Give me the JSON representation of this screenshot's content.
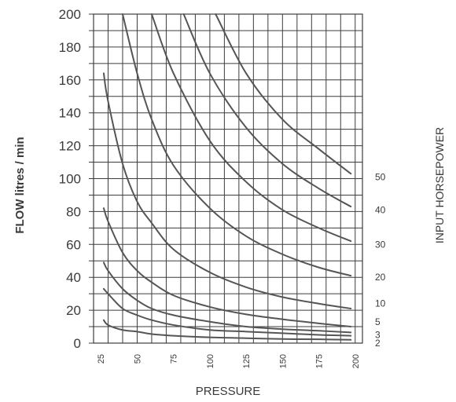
{
  "chart_data": {
    "type": "line",
    "xlabel": "PRESSURE",
    "ylabel": "FLOW litres / min",
    "right_label": "INPUT HORSEPOWER",
    "xlim": [
      20,
      205
    ],
    "ylim": [
      0,
      200
    ],
    "x_ticks": [
      25,
      50,
      75,
      100,
      125,
      150,
      175,
      200
    ],
    "y_ticks": [
      0,
      20,
      40,
      60,
      80,
      100,
      120,
      140,
      160,
      180,
      200
    ],
    "grid": true,
    "colors": {
      "line": "#555555",
      "grid": "#3c3c3c",
      "text": "#3a3a3a"
    },
    "series": [
      {
        "name": "2",
        "x": [
          27,
          30,
          40,
          50,
          60,
          75,
          100,
          125,
          150,
          175,
          197
        ],
        "y": [
          14,
          11,
          8,
          7,
          5.5,
          4.5,
          3.5,
          3,
          2.5,
          2.3,
          2
        ]
      },
      {
        "name": "3",
        "x": [
          27,
          30,
          40,
          50,
          60,
          75,
          100,
          125,
          150,
          175,
          197
        ],
        "y": [
          33,
          30,
          21,
          17,
          14,
          11,
          8,
          7,
          6,
          5,
          4.5
        ]
      },
      {
        "name": "5",
        "x": [
          27,
          30,
          40,
          50,
          60,
          75,
          100,
          125,
          150,
          175,
          197
        ],
        "y": [
          49,
          44,
          33,
          26,
          21,
          17,
          13,
          10,
          8.5,
          7.5,
          6.5
        ]
      },
      {
        "name": "10",
        "x": [
          27,
          30,
          40,
          50,
          60,
          75,
          100,
          125,
          150,
          175,
          197
        ],
        "y": [
          82,
          74,
          55,
          44,
          37,
          29,
          22,
          17.5,
          14.5,
          12,
          10
        ]
      },
      {
        "name": "20",
        "x": [
          27,
          30,
          40,
          50,
          60,
          75,
          100,
          125,
          150,
          175,
          197
        ],
        "y": [
          164,
          147,
          109,
          86,
          73,
          57,
          43,
          34,
          28,
          24,
          21
        ]
      },
      {
        "name": "30",
        "x": [
          40,
          50,
          60,
          75,
          100,
          125,
          150,
          175,
          197
        ],
        "y": [
          200,
          164,
          136,
          108,
          82,
          65,
          54,
          46,
          41
        ]
      },
      {
        "name": "40",
        "x": [
          60,
          75,
          100,
          125,
          150,
          175,
          197
        ],
        "y": [
          200,
          164,
          123,
          98,
          81,
          70,
          62
        ]
      },
      {
        "name": "50",
        "x": [
          82,
          100,
          125,
          150,
          175,
          197
        ],
        "y": [
          200,
          164,
          131,
          109,
          94,
          83
        ]
      },
      {
        "name": "",
        "x": [
          104,
          125,
          150,
          175,
          197
        ],
        "y": [
          200,
          164,
          136,
          118,
          103
        ]
      }
    ],
    "curve_labels": [
      {
        "text": "2",
        "y": 0
      },
      {
        "text": "3",
        "y": 5
      },
      {
        "text": "5",
        "y": 13
      },
      {
        "text": "10",
        "y": 24
      },
      {
        "text": "20",
        "y": 40
      },
      {
        "text": "30",
        "y": 60
      },
      {
        "text": "40",
        "y": 81
      },
      {
        "text": "50",
        "y": 101
      }
    ]
  }
}
